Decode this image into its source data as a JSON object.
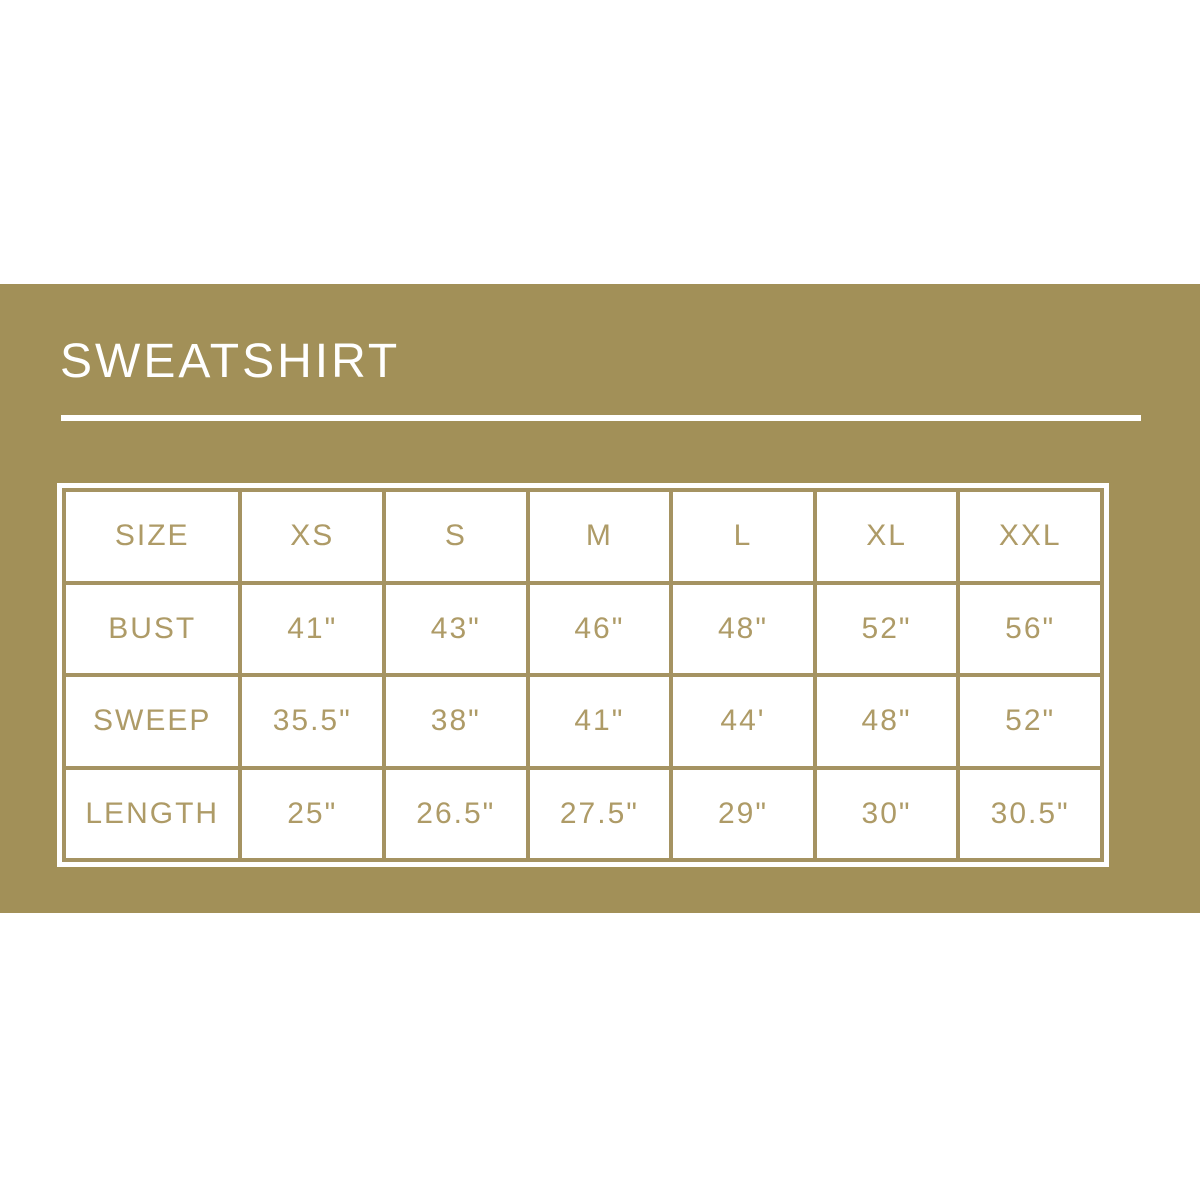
{
  "page": {
    "background_color": "#ffffff",
    "band_color": "#a29058"
  },
  "title": {
    "text": "SWEATSHIRT",
    "color": "#ffffff"
  },
  "table": {
    "grid_color": "#a59362",
    "cell_background": "#ffffff",
    "text_color": "#ae9b67",
    "header": [
      "SIZE",
      "XS",
      "S",
      "M",
      "L",
      "XL",
      "XXL"
    ],
    "rows": [
      {
        "label": "BUST",
        "values": [
          "41\"",
          "43\"",
          "46\"",
          "48\"",
          "52\"",
          "56\""
        ]
      },
      {
        "label": "SWEEP",
        "values": [
          "35.5\"",
          "38\"",
          "41\"",
          "44'",
          "48\"",
          "52\""
        ]
      },
      {
        "label": "LENGTH",
        "values": [
          "25\"",
          "26.5\"",
          "27.5\"",
          "29\"",
          "30\"",
          "30.5\""
        ]
      }
    ]
  },
  "chart_data": {
    "type": "table",
    "title": "SWEATSHIRT",
    "columns": [
      "SIZE",
      "XS",
      "S",
      "M",
      "L",
      "XL",
      "XXL"
    ],
    "rows": [
      [
        "BUST",
        "41\"",
        "43\"",
        "46\"",
        "48\"",
        "52\"",
        "56\""
      ],
      [
        "SWEEP",
        "35.5\"",
        "38\"",
        "41\"",
        "44'",
        "48\"",
        "52\""
      ],
      [
        "LENGTH",
        "25\"",
        "26.5\"",
        "27.5\"",
        "29\"",
        "30\"",
        "30.5\""
      ]
    ]
  }
}
